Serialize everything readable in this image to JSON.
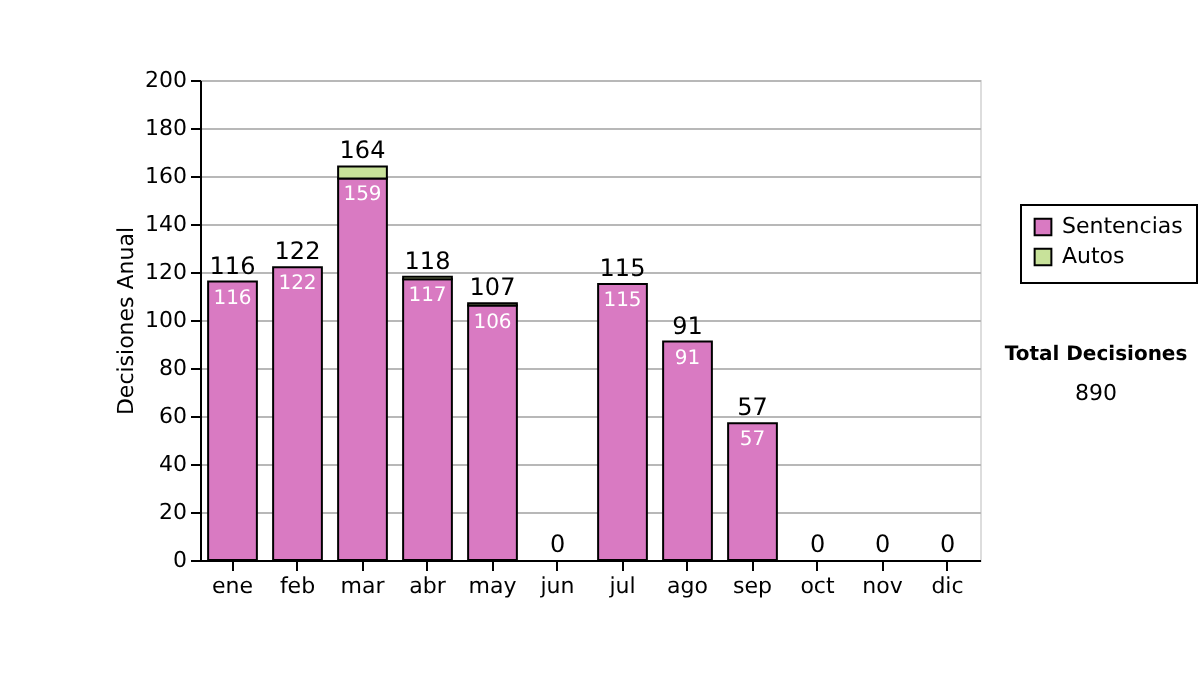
{
  "chart_data": {
    "type": "bar",
    "stacked": true,
    "ylabel": "Decisiones Anual",
    "categories": [
      "ene",
      "feb",
      "mar",
      "abr",
      "may",
      "jun",
      "jul",
      "ago",
      "sep",
      "oct",
      "nov",
      "dic"
    ],
    "series": [
      {
        "name": "Sentencias",
        "color": "#d97ac2",
        "values": [
          116,
          122,
          159,
          117,
          106,
          0,
          115,
          91,
          57,
          0,
          0,
          0
        ],
        "value_labels": [
          "116",
          "122",
          "159",
          "117",
          "106",
          null,
          "115",
          "91",
          "57",
          null,
          null,
          null
        ]
      },
      {
        "name": "Autos",
        "color": "#c8e29a",
        "values": [
          0,
          0,
          5,
          1,
          1,
          0,
          0,
          0,
          0,
          0,
          0,
          0
        ]
      }
    ],
    "totals": [
      "116",
      "122",
      "164",
      "118",
      "107",
      "0",
      "115",
      "91",
      "57",
      "0",
      "0",
      "0"
    ],
    "ylim": [
      0,
      200
    ],
    "yticks": [
      0,
      20,
      40,
      60,
      80,
      100,
      120,
      140,
      160,
      180,
      200
    ],
    "grid": "y",
    "legend": "right",
    "annotations": [
      "Total Decisiones",
      "890"
    ]
  }
}
